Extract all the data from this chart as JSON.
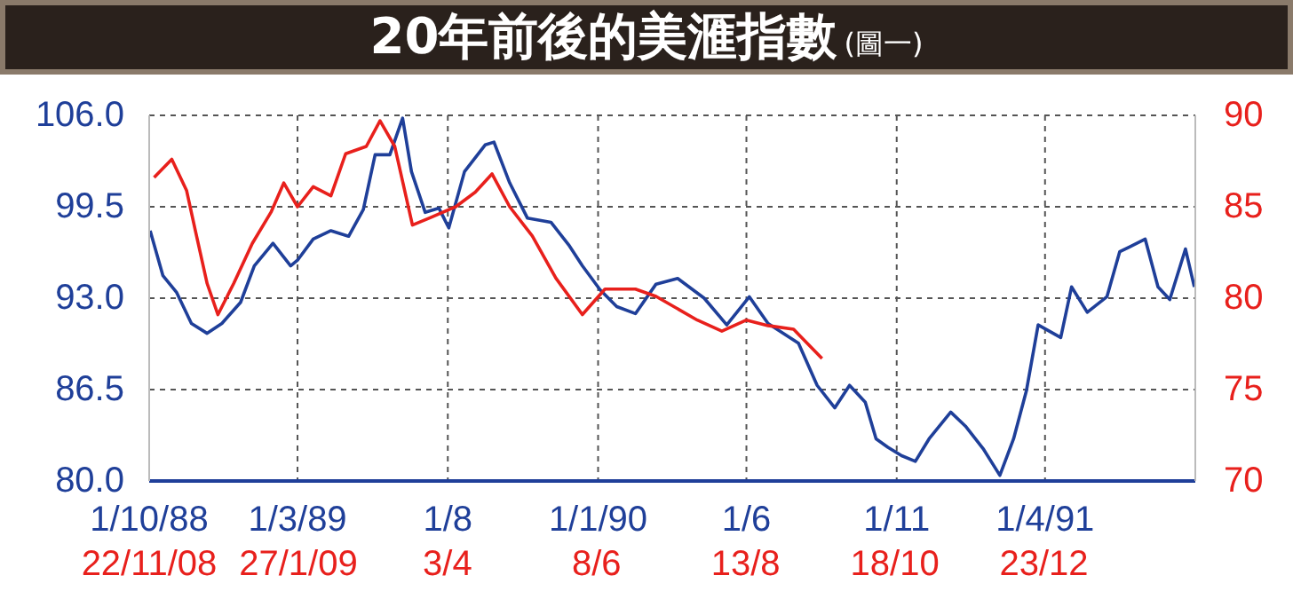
{
  "chart_data": {
    "type": "line",
    "title": "20年前後的美滙指數",
    "subtitle": "(圖一)",
    "xlim": [
      "1988-10-01",
      "1991-09-01"
    ],
    "xticks": [
      {
        "value": "1988-10-01",
        "label": "1/10/88"
      },
      {
        "value": "1989-03-01",
        "label": "1/3/89"
      },
      {
        "value": "1989-08-01",
        "label": "1/8"
      },
      {
        "value": "1990-01-01",
        "label": "1/1/90"
      },
      {
        "value": "1990-06-01",
        "label": "1/6"
      },
      {
        "value": "1990-11-01",
        "label": "1/11"
      },
      {
        "value": "1991-04-01",
        "label": "1/4/91"
      }
    ],
    "x2lim": [
      "2008-11-22",
      "2010-02-28"
    ],
    "x2ticks": [
      {
        "value": "2008-11-22",
        "label": "22/11/08"
      },
      {
        "value": "2009-01-27",
        "label": "27/1/09"
      },
      {
        "value": "2009-04-03",
        "label": "3/4"
      },
      {
        "value": "2009-06-08",
        "label": "8/6"
      },
      {
        "value": "2009-08-13",
        "label": "13/8"
      },
      {
        "value": "2009-10-18",
        "label": "18/10"
      },
      {
        "value": "2009-12-23",
        "label": "23/12"
      }
    ],
    "ylim": [
      80,
      106
    ],
    "yticks": [
      {
        "value": 80,
        "label": "80.0"
      },
      {
        "value": 86.5,
        "label": "86.5"
      },
      {
        "value": 93,
        "label": "93.0"
      },
      {
        "value": 99.5,
        "label": "99.5"
      },
      {
        "value": 106,
        "label": "106.0"
      }
    ],
    "y2lim": [
      70,
      90
    ],
    "y2ticks": [
      70,
      75,
      80,
      85,
      90
    ],
    "grid": true,
    "marker": "none",
    "line_style": "solid",
    "series": [
      {
        "color": "#1f3f99",
        "x": [
          "1988-10-02",
          "1988-10-15",
          "1988-10-29",
          "1988-11-13",
          "1988-11-29",
          "1988-12-14",
          "1989-01-02",
          "1989-01-16",
          "1989-02-04",
          "1989-02-22",
          "1989-03-01",
          "1989-03-17",
          "1989-04-04",
          "1989-04-22",
          "1989-05-07",
          "1989-05-19",
          "1989-06-03",
          "1989-06-16",
          "1989-06-25",
          "1989-07-09",
          "1989-07-23",
          "1989-08-02",
          "1989-08-18",
          "1989-09-08",
          "1989-09-17",
          "1989-10-03",
          "1989-10-21",
          "1989-11-14",
          "1989-12-02",
          "1989-12-16",
          "1990-01-03",
          "1990-01-20",
          "1990-02-08",
          "1990-03-01",
          "1990-03-23",
          "1990-04-19",
          "1990-05-12",
          "1990-06-04",
          "1990-06-23",
          "1990-07-24",
          "1990-08-12",
          "1990-08-30",
          "1990-09-14",
          "1990-09-30",
          "1990-10-11",
          "1990-10-23",
          "1990-11-06",
          "1990-11-20",
          "1990-12-04",
          "1990-12-26",
          "1991-01-10",
          "1991-01-28",
          "1991-02-14",
          "1991-02-28",
          "1991-03-13",
          "1991-03-25",
          "1991-04-17",
          "1991-04-28",
          "1991-05-14",
          "1991-06-03",
          "1991-06-16",
          "1991-07-12",
          "1991-07-25",
          "1991-08-06",
          "1991-08-22",
          "1991-08-31"
        ],
        "values": [
          97.8,
          94.6,
          93.4,
          91.2,
          90.5,
          91.2,
          92.7,
          95.3,
          96.9,
          95.3,
          95.7,
          97.2,
          97.8,
          97.4,
          99.3,
          103.2,
          103.2,
          105.8,
          102.0,
          99.1,
          99.4,
          98.0,
          102.0,
          103.9,
          104.1,
          101.2,
          98.7,
          98.4,
          96.8,
          95.3,
          93.6,
          92.4,
          91.9,
          94.0,
          94.4,
          93.0,
          91.1,
          93.1,
          91.2,
          89.8,
          86.8,
          85.2,
          86.8,
          85.6,
          83.0,
          82.4,
          81.8,
          81.4,
          83.0,
          84.9,
          83.9,
          82.3,
          80.4,
          83.0,
          86.4,
          91.1,
          90.2,
          93.8,
          92.0,
          93.1,
          96.3,
          97.2,
          93.8,
          92.9,
          96.5,
          93.8
        ]
      },
      {
        "color": "#e8201c",
        "axis": "y2",
        "x": [
          "1988-10-06",
          "1988-10-24",
          "1988-11-08",
          "1988-11-17",
          "1988-11-29",
          "1988-12-10",
          "1988-12-26",
          "1989-01-14",
          "1989-02-02",
          "1989-02-15",
          "1989-03-01",
          "1989-03-17",
          "1989-04-04",
          "1989-04-19",
          "1989-05-10",
          "1989-05-24",
          "1989-06-08",
          "1989-06-26",
          "1989-07-14",
          "1989-08-09",
          "1989-08-29",
          "1989-09-15",
          "1989-10-03",
          "1989-10-26",
          "1989-11-19",
          "1989-12-16",
          "1990-01-08",
          "1990-02-08",
          "1990-03-01",
          "1990-04-12",
          "1990-05-07",
          "1990-06-01",
          "1990-06-23",
          "1990-07-19",
          "1990-08-17"
        ],
        "values": [
          86.6,
          87.6,
          85.9,
          83.7,
          80.8,
          79.1,
          80.8,
          83.0,
          84.7,
          86.3,
          85.0,
          86.1,
          85.6,
          87.9,
          88.3,
          89.7,
          88.3,
          84.0,
          84.4,
          85.0,
          85.8,
          86.8,
          85.0,
          83.4,
          81.1,
          79.1,
          80.5,
          80.5,
          80.1,
          78.8,
          78.2,
          78.8,
          78.5,
          78.3,
          76.7
        ]
      }
    ]
  }
}
